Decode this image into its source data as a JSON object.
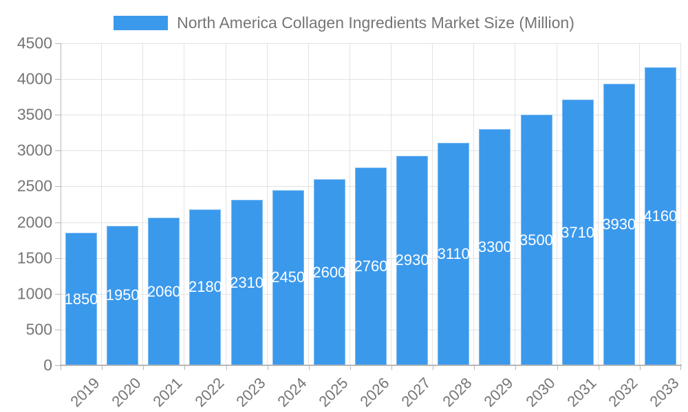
{
  "legend": {
    "label": "North America Collagen Ingredients Market Size (Million)"
  },
  "colors": {
    "background": "#FFFFFF",
    "bar": "#3B99EC",
    "bar_edge": "#7CBBF1",
    "bar_label": "#FFFFFF",
    "grid": "#E2E2E2",
    "axis": "#B6B6B6",
    "text": "#757575"
  },
  "chart_data": {
    "type": "bar",
    "title": "North America Collagen Ingredients Market Size (Million)",
    "categories": [
      "2019",
      "2020",
      "2021",
      "2022",
      "2023",
      "2024",
      "2025",
      "2026",
      "2027",
      "2028",
      "2029",
      "2030",
      "2031",
      "2032",
      "2033"
    ],
    "values": [
      1850,
      1950,
      2060,
      2180,
      2310,
      2450,
      2600,
      2760,
      2930,
      3110,
      3300,
      3500,
      3710,
      3930,
      4160
    ],
    "xlabel": "",
    "ylabel": "",
    "ylim": [
      0,
      4500
    ],
    "ytick_step": 500,
    "grid": true,
    "legend_position": "top-center",
    "bar_label_position": "inside-center",
    "x_tick_rotation_deg": -45
  }
}
